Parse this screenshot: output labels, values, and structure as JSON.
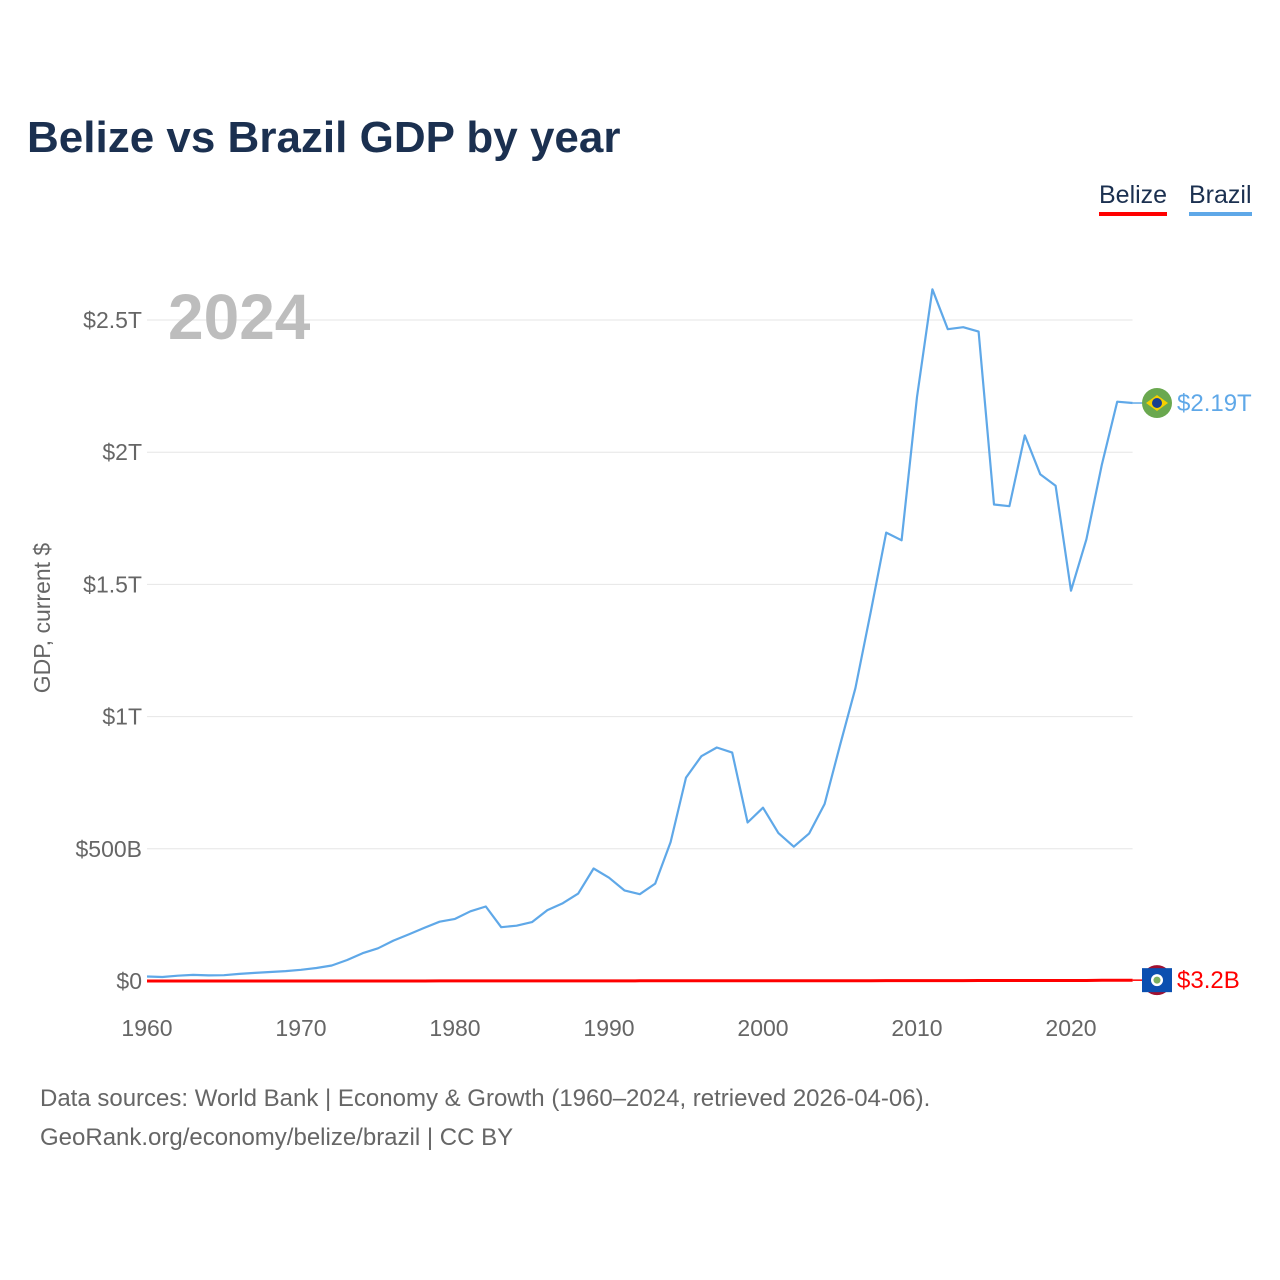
{
  "title": "Belize vs Brazil GDP by year",
  "legend": [
    {
      "label": "Belize",
      "color": "#ff0000"
    },
    {
      "label": "Brazil",
      "color": "#5fa8e8"
    }
  ],
  "footer": {
    "line1": "Data sources: World Bank | Economy & Growth (1960–2024, retrieved 2026-04-06).",
    "line2": "GeoRank.org/economy/belize/brazil | CC BY"
  },
  "chart_data": {
    "type": "line",
    "title": "Belize vs Brazil GDP by year",
    "xlabel": "",
    "ylabel": "GDP, current $",
    "year_label": "2024",
    "xlim": [
      1960,
      2024
    ],
    "ylim_billions": [
      0,
      2700
    ],
    "xticks": [
      1960,
      1970,
      1980,
      1990,
      2000,
      2010,
      2020
    ],
    "yticks": [
      {
        "v": 0,
        "label": "$0"
      },
      {
        "v": 500,
        "label": "$500B"
      },
      {
        "v": 1000,
        "label": "$1T"
      },
      {
        "v": 1500,
        "label": "$1.5T"
      },
      {
        "v": 2000,
        "label": "$2T"
      },
      {
        "v": 2500,
        "label": "$2.5T"
      }
    ],
    "grid": true,
    "legend_position": "top-right",
    "units": "billions USD",
    "x": [
      1960,
      1961,
      1962,
      1963,
      1964,
      1965,
      1966,
      1967,
      1968,
      1969,
      1970,
      1971,
      1972,
      1973,
      1974,
      1975,
      1976,
      1977,
      1978,
      1979,
      1980,
      1981,
      1982,
      1983,
      1984,
      1985,
      1986,
      1987,
      1988,
      1989,
      1990,
      1991,
      1992,
      1993,
      1994,
      1995,
      1996,
      1997,
      1998,
      1999,
      2000,
      2001,
      2002,
      2003,
      2004,
      2005,
      2006,
      2007,
      2008,
      2009,
      2010,
      2011,
      2012,
      2013,
      2014,
      2015,
      2016,
      2017,
      2018,
      2019,
      2020,
      2021,
      2022,
      2023,
      2024
    ],
    "series": [
      {
        "name": "Belize",
        "color": "#ff0000",
        "end_label": "$3.2B",
        "flag": "belize-flag",
        "values": [
          0.03,
          0.03,
          0.03,
          0.03,
          0.04,
          0.04,
          0.04,
          0.05,
          0.05,
          0.05,
          0.06,
          0.07,
          0.08,
          0.09,
          0.11,
          0.13,
          0.12,
          0.14,
          0.17,
          0.2,
          0.25,
          0.26,
          0.24,
          0.25,
          0.27,
          0.26,
          0.28,
          0.33,
          0.38,
          0.43,
          0.48,
          0.51,
          0.57,
          0.6,
          0.61,
          0.63,
          0.65,
          0.66,
          0.69,
          0.74,
          0.83,
          0.87,
          0.93,
          0.99,
          1.05,
          1.11,
          1.21,
          1.29,
          1.37,
          1.34,
          1.4,
          1.49,
          1.57,
          1.62,
          1.71,
          1.77,
          1.79,
          1.84,
          1.93,
          2.0,
          1.73,
          2.08,
          2.64,
          2.95,
          3.2
        ]
      },
      {
        "name": "Brazil",
        "color": "#5fa8e8",
        "end_label": "$2.19T",
        "flag": "brazil-flag",
        "values": [
          17,
          15.2,
          19.9,
          23,
          21.2,
          21.8,
          27,
          30.6,
          33.9,
          37.5,
          42.3,
          49.2,
          58.5,
          79.3,
          105,
          123.7,
          152.7,
          176.2,
          200.8,
          224.1,
          235,
          263.6,
          281.7,
          203.3,
          209,
          222.9,
          268.1,
          294.1,
          330.4,
          425.6,
          390.7,
          342.6,
          328.2,
          368.3,
          525.4,
          769.3,
          850.4,
          883.2,
          863.7,
          599.4,
          655.4,
          559.4,
          507.9,
          558.3,
          669.3,
          891.6,
          1107.6,
          1397.1,
          1695.8,
          1666.9,
          2208.7,
          2616.2,
          2465.2,
          2472.8,
          2456,
          1802.2,
          1795.7,
          2063.5,
          1916.9,
          1873.3,
          1476.1,
          1670.6,
          1951.9,
          2191.1,
          2186
        ]
      }
    ]
  }
}
